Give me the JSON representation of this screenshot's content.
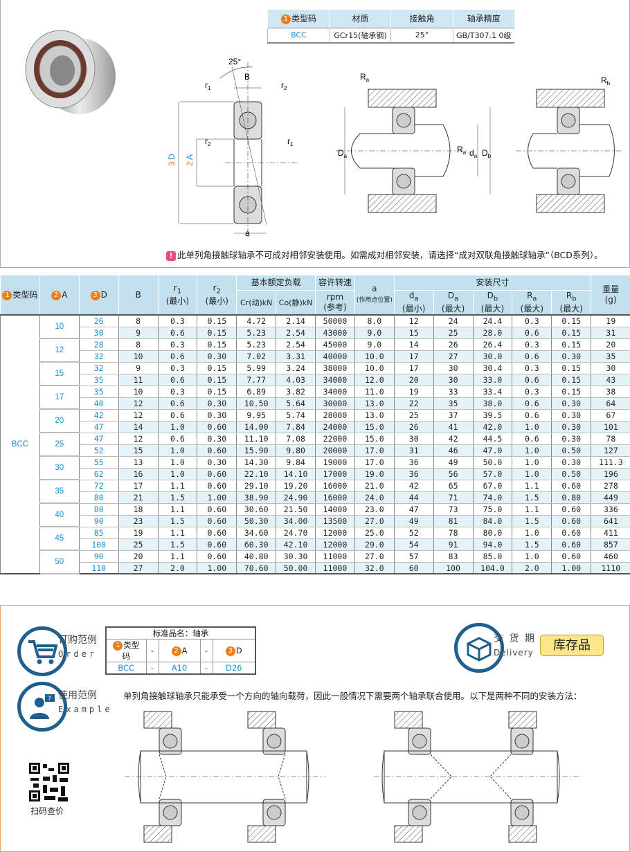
{
  "spec_table": {
    "headers": [
      "类型码",
      "材质",
      "接触角",
      "轴承精度"
    ],
    "header_num": "1",
    "values": [
      "BCC",
      "GCr15(轴承钢)",
      "25°",
      "GB/T307.1 0级"
    ]
  },
  "diagram_labels": {
    "angle": "25°",
    "B": "B",
    "r1": "r",
    "r1_sub": "1",
    "r2": "r",
    "r2_sub": "2",
    "D": "D",
    "D_num": "3",
    "A": "A",
    "A_num": "2",
    "a": "a",
    "Ra": "R",
    "Ra_sub": "a",
    "Da": "D",
    "Da_sub": "a",
    "da": "d",
    "da_sub": "a",
    "Db": "D",
    "Db_sub": "b",
    "Rb": "R",
    "Rb_sub": "b"
  },
  "note": {
    "icon": "exclamation-icon",
    "text": "此单列角接触球轴承不可成对相邻安装使用。如需成对相邻安装，请选择“成对双联角接触球轴承”（BCD系列）。"
  },
  "main_table": {
    "headers": {
      "type": "类型码",
      "A": "A",
      "D": "D",
      "B": "B",
      "r1": "r",
      "r1_sub": "1",
      "r2": "r",
      "r2_sub": "2",
      "min": "(最小)",
      "max": "(最大)",
      "load": "基本额定负载",
      "cr": "Cr(动)kN",
      "co": "Co(静)kN",
      "speed": "容许转速",
      "rpm": "rpm",
      "ref": "(参考)",
      "a": "a",
      "a_note": "(作用点位置)",
      "install": "安装尺寸",
      "da": "d",
      "da_sub": "a",
      "Da": "D",
      "Da_sub": "a",
      "Db": "D",
      "Db_sub": "b",
      "Ra": "R",
      "Ra_sub": "a",
      "Rb": "R",
      "Rb_sub": "b",
      "weight": "重量",
      "weight_unit": "(g)"
    },
    "type_value": "BCC",
    "groups": [
      {
        "A": "10",
        "rows": [
          [
            "26",
            "8",
            "0.3",
            "0.15",
            "4.72",
            "2.14",
            "50000",
            "8.0",
            "12",
            "24",
            "24.4",
            "0.3",
            "0.15",
            "19"
          ],
          [
            "30",
            "9",
            "0.6",
            "0.15",
            "5.23",
            "2.54",
            "43000",
            "9.0",
            "15",
            "25",
            "28.0",
            "0.6",
            "0.15",
            "31"
          ]
        ]
      },
      {
        "A": "12",
        "rows": [
          [
            "28",
            "8",
            "0.3",
            "0.15",
            "5.23",
            "2.54",
            "45000",
            "9.0",
            "14",
            "26",
            "26.4",
            "0.3",
            "0.15",
            "20"
          ],
          [
            "32",
            "10",
            "0.6",
            "0.30",
            "7.02",
            "3.31",
            "40000",
            "10.0",
            "17",
            "27",
            "30.0",
            "0.6",
            "0.30",
            "35"
          ]
        ]
      },
      {
        "A": "15",
        "rows": [
          [
            "32",
            "9",
            "0.3",
            "0.15",
            "5.99",
            "3.24",
            "38000",
            "10.0",
            "17",
            "30",
            "30.4",
            "0.3",
            "0.15",
            "30"
          ],
          [
            "35",
            "11",
            "0.6",
            "0.15",
            "7.77",
            "4.03",
            "34000",
            "12.0",
            "20",
            "30",
            "33.0",
            "0.6",
            "0.15",
            "43"
          ]
        ]
      },
      {
        "A": "17",
        "rows": [
          [
            "35",
            "10",
            "0.3",
            "0.15",
            "6.89",
            "3.82",
            "34000",
            "11.0",
            "19",
            "33",
            "33.4",
            "0.3",
            "0.15",
            "38"
          ],
          [
            "40",
            "12",
            "0.6",
            "0.30",
            "10.50",
            "5.64",
            "30000",
            "13.0",
            "22",
            "35",
            "38.0",
            "0.6",
            "0.30",
            "64"
          ]
        ]
      },
      {
        "A": "20",
        "rows": [
          [
            "42",
            "12",
            "0.6",
            "0.30",
            "9.95",
            "5.74",
            "28000",
            "13.0",
            "25",
            "37",
            "39.5",
            "0.6",
            "0.30",
            "67"
          ],
          [
            "47",
            "14",
            "1.0",
            "0.60",
            "14.00",
            "7.84",
            "24000",
            "15.0",
            "26",
            "41",
            "42.0",
            "1.0",
            "0.30",
            "101"
          ]
        ]
      },
      {
        "A": "25",
        "rows": [
          [
            "47",
            "12",
            "0.6",
            "0.30",
            "11.10",
            "7.08",
            "22000",
            "15.0",
            "30",
            "42",
            "44.5",
            "0.6",
            "0.30",
            "78"
          ],
          [
            "52",
            "15",
            "1.0",
            "0.60",
            "15.90",
            "9.80",
            "20000",
            "17.0",
            "31",
            "46",
            "47.0",
            "1.0",
            "0.50",
            "127"
          ]
        ]
      },
      {
        "A": "30",
        "rows": [
          [
            "55",
            "13",
            "1.0",
            "0.30",
            "14.30",
            "9.84",
            "19000",
            "17.0",
            "36",
            "49",
            "50.0",
            "1.0",
            "0.30",
            "111.3"
          ],
          [
            "62",
            "16",
            "1.0",
            "0.60",
            "22.10",
            "14.10",
            "17000",
            "19.0",
            "36",
            "56",
            "57.0",
            "1.0",
            "0.50",
            "196"
          ]
        ]
      },
      {
        "A": "35",
        "rows": [
          [
            "72",
            "17",
            "1.1",
            "0.60",
            "29.10",
            "19.20",
            "16000",
            "21.0",
            "42",
            "65",
            "67.0",
            "1.1",
            "0.60",
            "278"
          ],
          [
            "80",
            "21",
            "1.5",
            "1.00",
            "38.90",
            "24.90",
            "16000",
            "24.0",
            "44",
            "71",
            "74.0",
            "1.5",
            "0.80",
            "449"
          ]
        ]
      },
      {
        "A": "40",
        "rows": [
          [
            "80",
            "18",
            "1.1",
            "0.60",
            "30.60",
            "21.50",
            "14000",
            "23.0",
            "47",
            "73",
            "75.0",
            "1.1",
            "0.60",
            "336"
          ],
          [
            "90",
            "23",
            "1.5",
            "0.60",
            "50.30",
            "34.00",
            "13500",
            "27.0",
            "49",
            "81",
            "84.0",
            "1.5",
            "0.60",
            "641"
          ]
        ]
      },
      {
        "A": "45",
        "rows": [
          [
            "85",
            "19",
            "1.1",
            "0.60",
            "34.60",
            "24.70",
            "12000",
            "25.0",
            "52",
            "78",
            "80.0",
            "1.0",
            "0.60",
            "411"
          ],
          [
            "100",
            "25",
            "1.5",
            "0.60",
            "60.30",
            "42.10",
            "12000",
            "29.0",
            "54",
            "91",
            "94.0",
            "1.5",
            "0.60",
            "857"
          ]
        ]
      },
      {
        "A": "50",
        "rows": [
          [
            "90",
            "20",
            "1.1",
            "0.60",
            "40.80",
            "30.30",
            "11000",
            "27.0",
            "57",
            "83",
            "85.0",
            "1.0",
            "0.60",
            "460"
          ],
          [
            "110",
            "27",
            "2.0",
            "1.00",
            "70.60",
            "50.00",
            "11000",
            "32.0",
            "60",
            "100",
            "104.0",
            "2.0",
            "1.00",
            "1110"
          ]
        ]
      }
    ]
  },
  "order": {
    "title_cn": "订购范例",
    "title_en": "Order",
    "icon": "cart-icon",
    "std_name": "标准品名：轴承",
    "cols": [
      "类型码",
      "-",
      "A",
      "-",
      "D"
    ],
    "col_nums": [
      "1",
      "",
      "2",
      "",
      "3"
    ],
    "values": [
      "BCC",
      "-",
      "A10",
      "-",
      "D26"
    ]
  },
  "delivery": {
    "title_cn": "交 货 期",
    "title_en": "Delivery",
    "icon": "box-icon",
    "badge": "库存品"
  },
  "example": {
    "title_cn": "使用范例",
    "title_en": "Example",
    "icon": "user-question-icon",
    "text": "单列角接触球轴承只能承受一个方向的轴向载荷，因此一般情况下需要两个轴承联合使用。以下是两种不同的安装方法："
  },
  "qr": {
    "label": "扫码查价"
  },
  "colors": {
    "accent_blue": "#1a8fd6",
    "header_bg": "#c3e0ef",
    "orange": "#f07c1c",
    "navy": "#1f5f8f",
    "stock_bg": "#fde68a"
  }
}
